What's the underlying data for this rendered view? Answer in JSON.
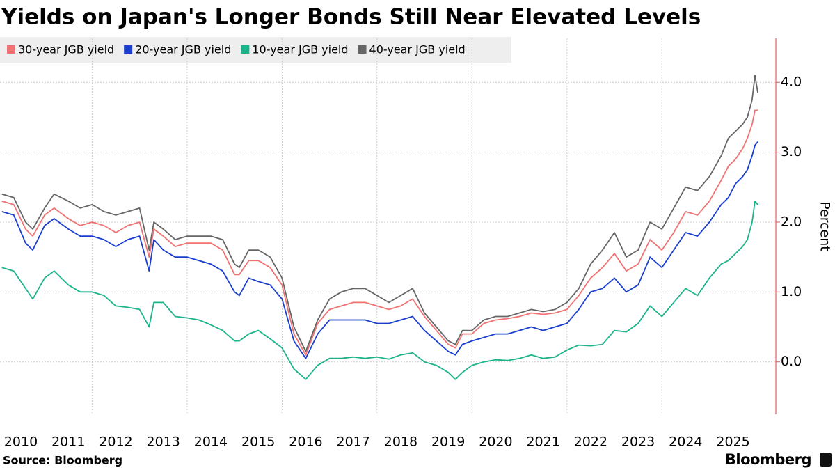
{
  "chart_data": {
    "type": "line",
    "title": "Yields on Japan's Longer Bonds Still Near Elevated Levels",
    "y_label": "Percent",
    "source": "Source: Bloomberg",
    "brand": "Bloomberg",
    "x": [
      2010.1,
      2010.35,
      2010.6,
      2010.75,
      2011.0,
      2011.2,
      2011.5,
      2011.75,
      2012.0,
      2012.25,
      2012.5,
      2012.75,
      2013.0,
      2013.2,
      2013.3,
      2013.5,
      2013.75,
      2014.0,
      2014.25,
      2014.5,
      2014.75,
      2015.0,
      2015.1,
      2015.3,
      2015.5,
      2015.75,
      2016.0,
      2016.25,
      2016.5,
      2016.75,
      2017.0,
      2017.25,
      2017.5,
      2017.75,
      2018.0,
      2018.25,
      2018.5,
      2018.75,
      2019.0,
      2019.25,
      2019.5,
      2019.65,
      2019.8,
      2020.0,
      2020.25,
      2020.5,
      2020.75,
      2021.0,
      2021.25,
      2021.5,
      2021.75,
      2022.0,
      2022.25,
      2022.5,
      2022.75,
      2023.0,
      2023.25,
      2023.5,
      2023.75,
      2024.0,
      2024.25,
      2024.5,
      2024.75,
      2025.0,
      2025.25,
      2025.4,
      2025.55,
      2025.7,
      2025.8,
      2025.9,
      2025.96,
      2026.02
    ],
    "series": [
      {
        "name": "30-year JGB yield",
        "color": "#f07272",
        "values": [
          2.3,
          2.25,
          1.9,
          1.8,
          2.1,
          2.2,
          2.05,
          1.95,
          2.0,
          1.95,
          1.85,
          1.95,
          2.0,
          1.5,
          1.9,
          1.8,
          1.65,
          1.7,
          1.7,
          1.7,
          1.6,
          1.25,
          1.25,
          1.45,
          1.45,
          1.35,
          1.1,
          0.4,
          0.1,
          0.55,
          0.75,
          0.8,
          0.85,
          0.85,
          0.8,
          0.75,
          0.8,
          0.9,
          0.65,
          0.45,
          0.25,
          0.2,
          0.4,
          0.4,
          0.55,
          0.6,
          0.62,
          0.65,
          0.7,
          0.68,
          0.7,
          0.75,
          0.95,
          1.2,
          1.35,
          1.55,
          1.3,
          1.4,
          1.75,
          1.6,
          1.85,
          2.15,
          2.1,
          2.3,
          2.6,
          2.8,
          2.9,
          3.05,
          3.2,
          3.4,
          3.6,
          3.6
        ]
      },
      {
        "name": "20-year JGB yield",
        "color": "#1a3fce",
        "values": [
          2.15,
          2.1,
          1.7,
          1.6,
          1.95,
          2.05,
          1.9,
          1.8,
          1.8,
          1.75,
          1.65,
          1.75,
          1.8,
          1.3,
          1.75,
          1.6,
          1.5,
          1.5,
          1.45,
          1.4,
          1.3,
          1.0,
          0.95,
          1.2,
          1.15,
          1.1,
          0.9,
          0.3,
          0.05,
          0.4,
          0.6,
          0.6,
          0.6,
          0.6,
          0.55,
          0.55,
          0.6,
          0.65,
          0.45,
          0.3,
          0.15,
          0.1,
          0.25,
          0.3,
          0.35,
          0.4,
          0.4,
          0.45,
          0.5,
          0.45,
          0.5,
          0.55,
          0.75,
          1.0,
          1.05,
          1.2,
          1.0,
          1.1,
          1.5,
          1.35,
          1.6,
          1.85,
          1.8,
          2.0,
          2.25,
          2.35,
          2.55,
          2.65,
          2.75,
          2.95,
          3.1,
          3.15
        ]
      },
      {
        "name": "10-year JGB yield",
        "color": "#1db38a",
        "values": [
          1.35,
          1.3,
          1.05,
          0.9,
          1.2,
          1.3,
          1.1,
          1.0,
          1.0,
          0.95,
          0.8,
          0.78,
          0.75,
          0.5,
          0.85,
          0.85,
          0.65,
          0.63,
          0.6,
          0.53,
          0.45,
          0.3,
          0.3,
          0.4,
          0.45,
          0.33,
          0.2,
          -0.1,
          -0.25,
          -0.05,
          0.05,
          0.05,
          0.07,
          0.05,
          0.07,
          0.04,
          0.1,
          0.13,
          0.0,
          -0.05,
          -0.15,
          -0.25,
          -0.15,
          -0.05,
          0.0,
          0.03,
          0.02,
          0.05,
          0.1,
          0.05,
          0.07,
          0.17,
          0.24,
          0.23,
          0.25,
          0.45,
          0.43,
          0.55,
          0.8,
          0.65,
          0.85,
          1.05,
          0.95,
          1.2,
          1.4,
          1.45,
          1.55,
          1.65,
          1.75,
          2.0,
          2.3,
          2.25
        ]
      },
      {
        "name": "40-year JGB yield",
        "color": "#666666",
        "values": [
          2.4,
          2.35,
          2.0,
          1.9,
          2.2,
          2.4,
          2.3,
          2.2,
          2.25,
          2.15,
          2.1,
          2.15,
          2.2,
          1.6,
          2.0,
          1.9,
          1.75,
          1.8,
          1.8,
          1.8,
          1.75,
          1.4,
          1.35,
          1.6,
          1.6,
          1.5,
          1.2,
          0.5,
          0.15,
          0.6,
          0.9,
          1.0,
          1.05,
          1.05,
          0.95,
          0.85,
          0.95,
          1.05,
          0.7,
          0.5,
          0.3,
          0.25,
          0.45,
          0.45,
          0.6,
          0.65,
          0.65,
          0.7,
          0.75,
          0.72,
          0.75,
          0.85,
          1.05,
          1.4,
          1.6,
          1.85,
          1.5,
          1.6,
          2.0,
          1.9,
          2.2,
          2.5,
          2.45,
          2.65,
          2.95,
          3.2,
          3.3,
          3.4,
          3.5,
          3.75,
          4.1,
          3.85
        ]
      }
    ],
    "xlim": [
      2010.06,
      2026.4
    ],
    "xticks": [
      2010,
      2011,
      2012,
      2013,
      2014,
      2015,
      2016,
      2017,
      2018,
      2019,
      2020,
      2021,
      2022,
      2023,
      2024,
      2025
    ],
    "ylim": [
      -0.75,
      4.63
    ],
    "yticks": [
      {
        "value": 0,
        "label": "0.0"
      },
      {
        "value": 1,
        "label": "1.0"
      },
      {
        "value": 2,
        "label": "2.0"
      },
      {
        "value": 3,
        "label": "3.0"
      },
      {
        "value": 4,
        "label": "4.0"
      }
    ],
    "grid": true,
    "legend": "top-left"
  }
}
